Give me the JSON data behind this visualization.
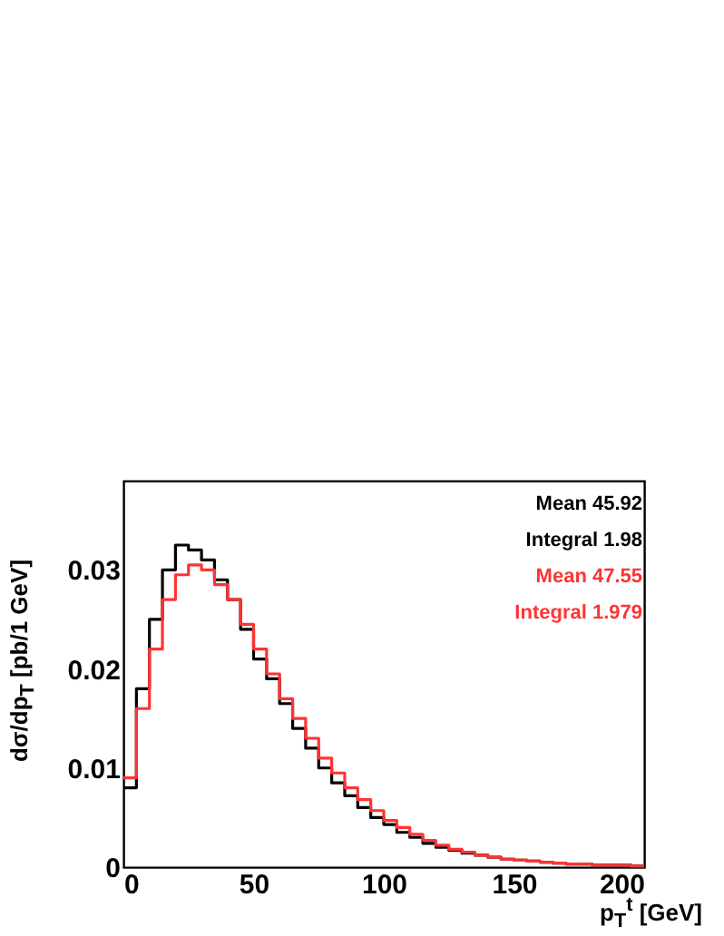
{
  "chart_data": {
    "type": "histogram",
    "xlabel": "p$_{T}$$^{t}$ [GeV]",
    "ylabel": "dσ/dp$_{T}$ [pb/1 GeV]",
    "bins": [
      0,
      5,
      10,
      15,
      20,
      25,
      30,
      35,
      40,
      45,
      50,
      55,
      60,
      65,
      70,
      75,
      80,
      85,
      90,
      95,
      100,
      105,
      110,
      115,
      120,
      125,
      130,
      135,
      140,
      145,
      150,
      155,
      160,
      165,
      170,
      175,
      180,
      185,
      190,
      195,
      200
    ],
    "series": [
      {
        "color": "#000000",
        "values": [
          0.008,
          0.018,
          0.025,
          0.03,
          0.0325,
          0.032,
          0.031,
          0.029,
          0.027,
          0.024,
          0.021,
          0.019,
          0.0165,
          0.014,
          0.012,
          0.01,
          0.0085,
          0.0072,
          0.006,
          0.005,
          0.0043,
          0.0035,
          0.003,
          0.0024,
          0.002,
          0.0017,
          0.0014,
          0.0012,
          0.001,
          0.0008,
          0.0007,
          0.0006,
          0.0005,
          0.0004,
          0.0003,
          0.0003,
          0.0002,
          0.0002,
          0.0002,
          0.0001
        ]
      },
      {
        "color": "#ff3333",
        "values": [
          0.009,
          0.016,
          0.022,
          0.027,
          0.0295,
          0.0305,
          0.03,
          0.0285,
          0.027,
          0.0245,
          0.022,
          0.0195,
          0.017,
          0.015,
          0.013,
          0.011,
          0.0095,
          0.008,
          0.0068,
          0.0057,
          0.0047,
          0.004,
          0.0033,
          0.0027,
          0.0022,
          0.0018,
          0.0015,
          0.0012,
          0.001,
          0.0008,
          0.0007,
          0.0006,
          0.0005,
          0.0004,
          0.0003,
          0.0003,
          0.0002,
          0.0002,
          0.0002,
          0.0001
        ]
      }
    ],
    "annotations": [
      "Mean 45.92",
      "Integral 1.98",
      "Mean 47.55",
      "Integral 1.979"
    ],
    "xlim": [
      0,
      200
    ],
    "xticks": [
      0,
      50,
      100,
      150,
      200
    ],
    "ylim": [
      0,
      0.039
    ],
    "yticks": [
      {
        "value": 0,
        "label": "0"
      },
      0.01,
      0.02,
      0.03
    ],
    "grid": false
  }
}
